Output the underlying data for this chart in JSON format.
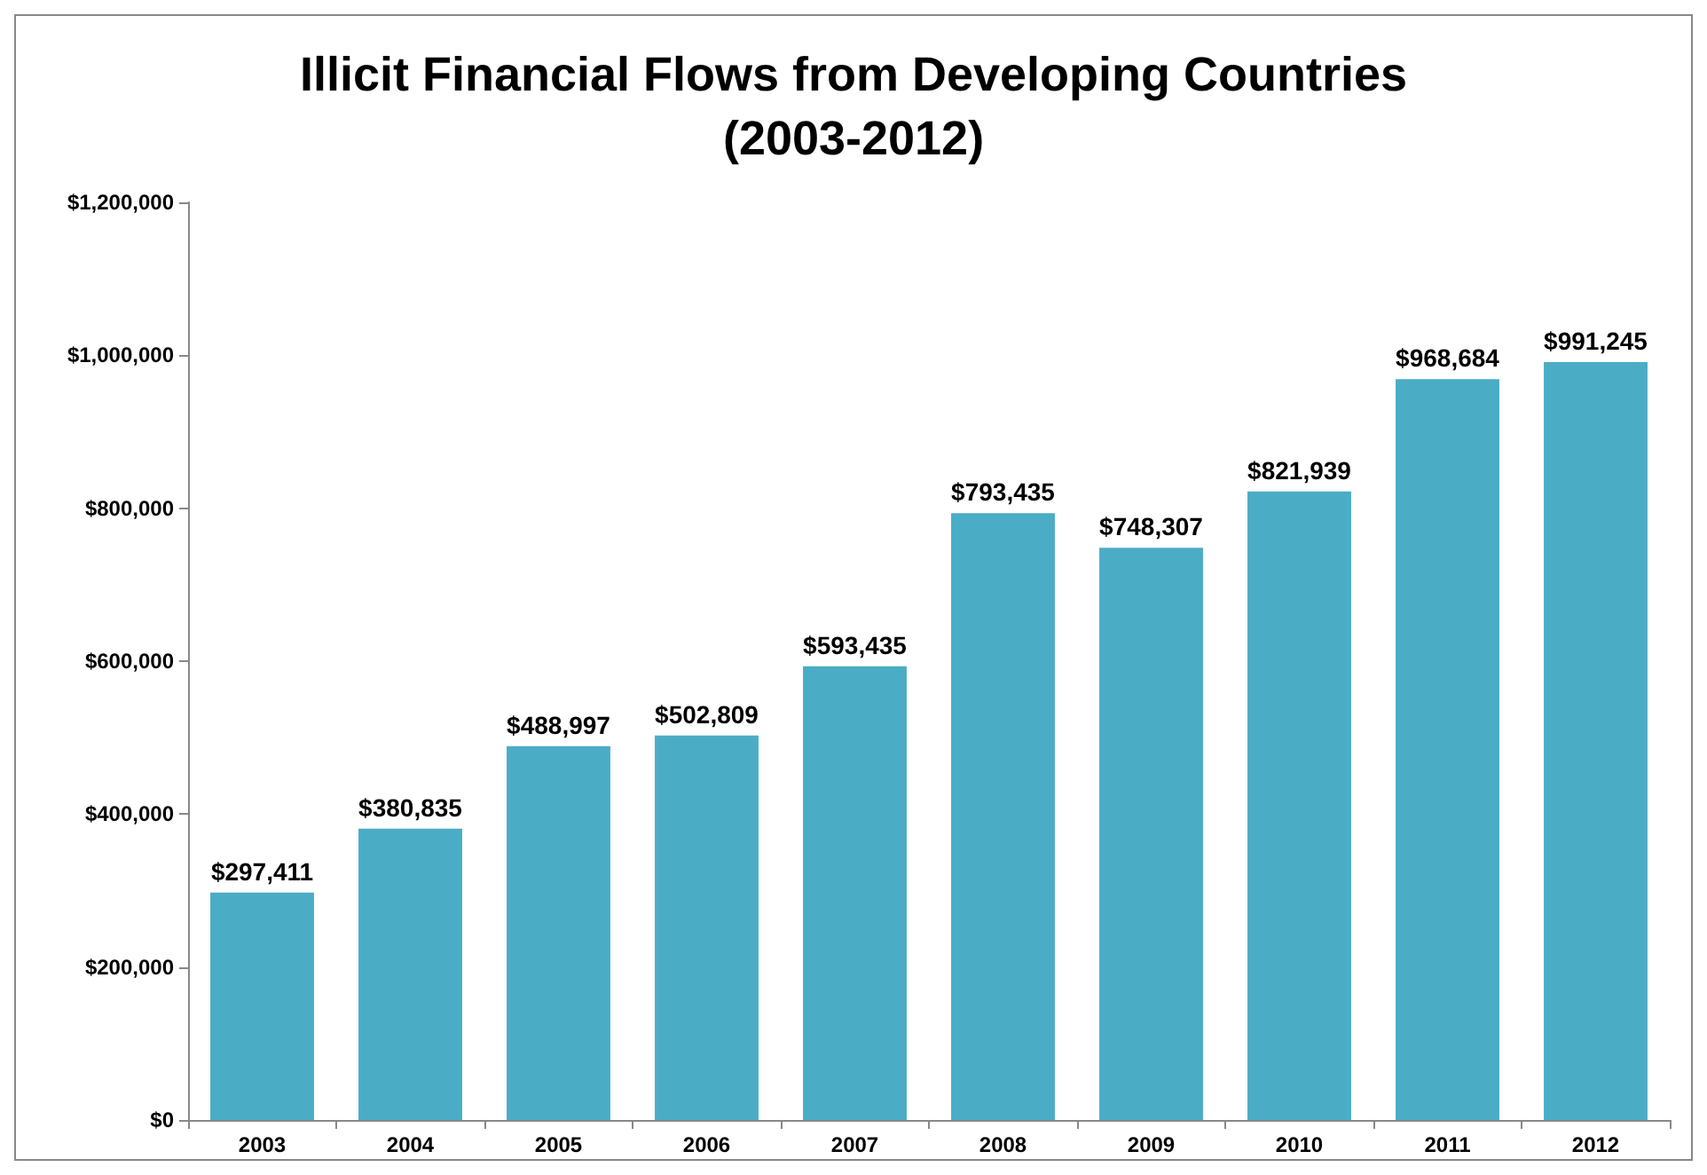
{
  "chart_data": {
    "type": "bar",
    "title": "Illicit Financial Flows from Developing Countries\n(2003-2012)",
    "categories": [
      "2003",
      "2004",
      "2005",
      "2006",
      "2007",
      "2008",
      "2009",
      "2010",
      "2011",
      "2012"
    ],
    "values": [
      297411,
      380835,
      488997,
      502809,
      593435,
      793435,
      748307,
      821939,
      968684,
      991245
    ],
    "value_labels": [
      "$297,411",
      "$380,835",
      "$488,997",
      "$502,809",
      "$593,435",
      "$793,435",
      "$748,307",
      "$821,939",
      "$968,684",
      "$991,245"
    ],
    "color": "#4bacc6",
    "ylim": [
      0,
      1200000
    ],
    "yticks": [
      {
        "value": 0,
        "label": "$0"
      },
      {
        "value": 200000,
        "label": "$200,000"
      },
      {
        "value": 400000,
        "label": "$400,000"
      },
      {
        "value": 600000,
        "label": "$600,000"
      },
      {
        "value": 800000,
        "label": "$800,000"
      },
      {
        "value": 1000000,
        "label": "$1,000,000"
      },
      {
        "value": 1200000,
        "label": "$1,200,000"
      }
    ],
    "grid": false
  }
}
